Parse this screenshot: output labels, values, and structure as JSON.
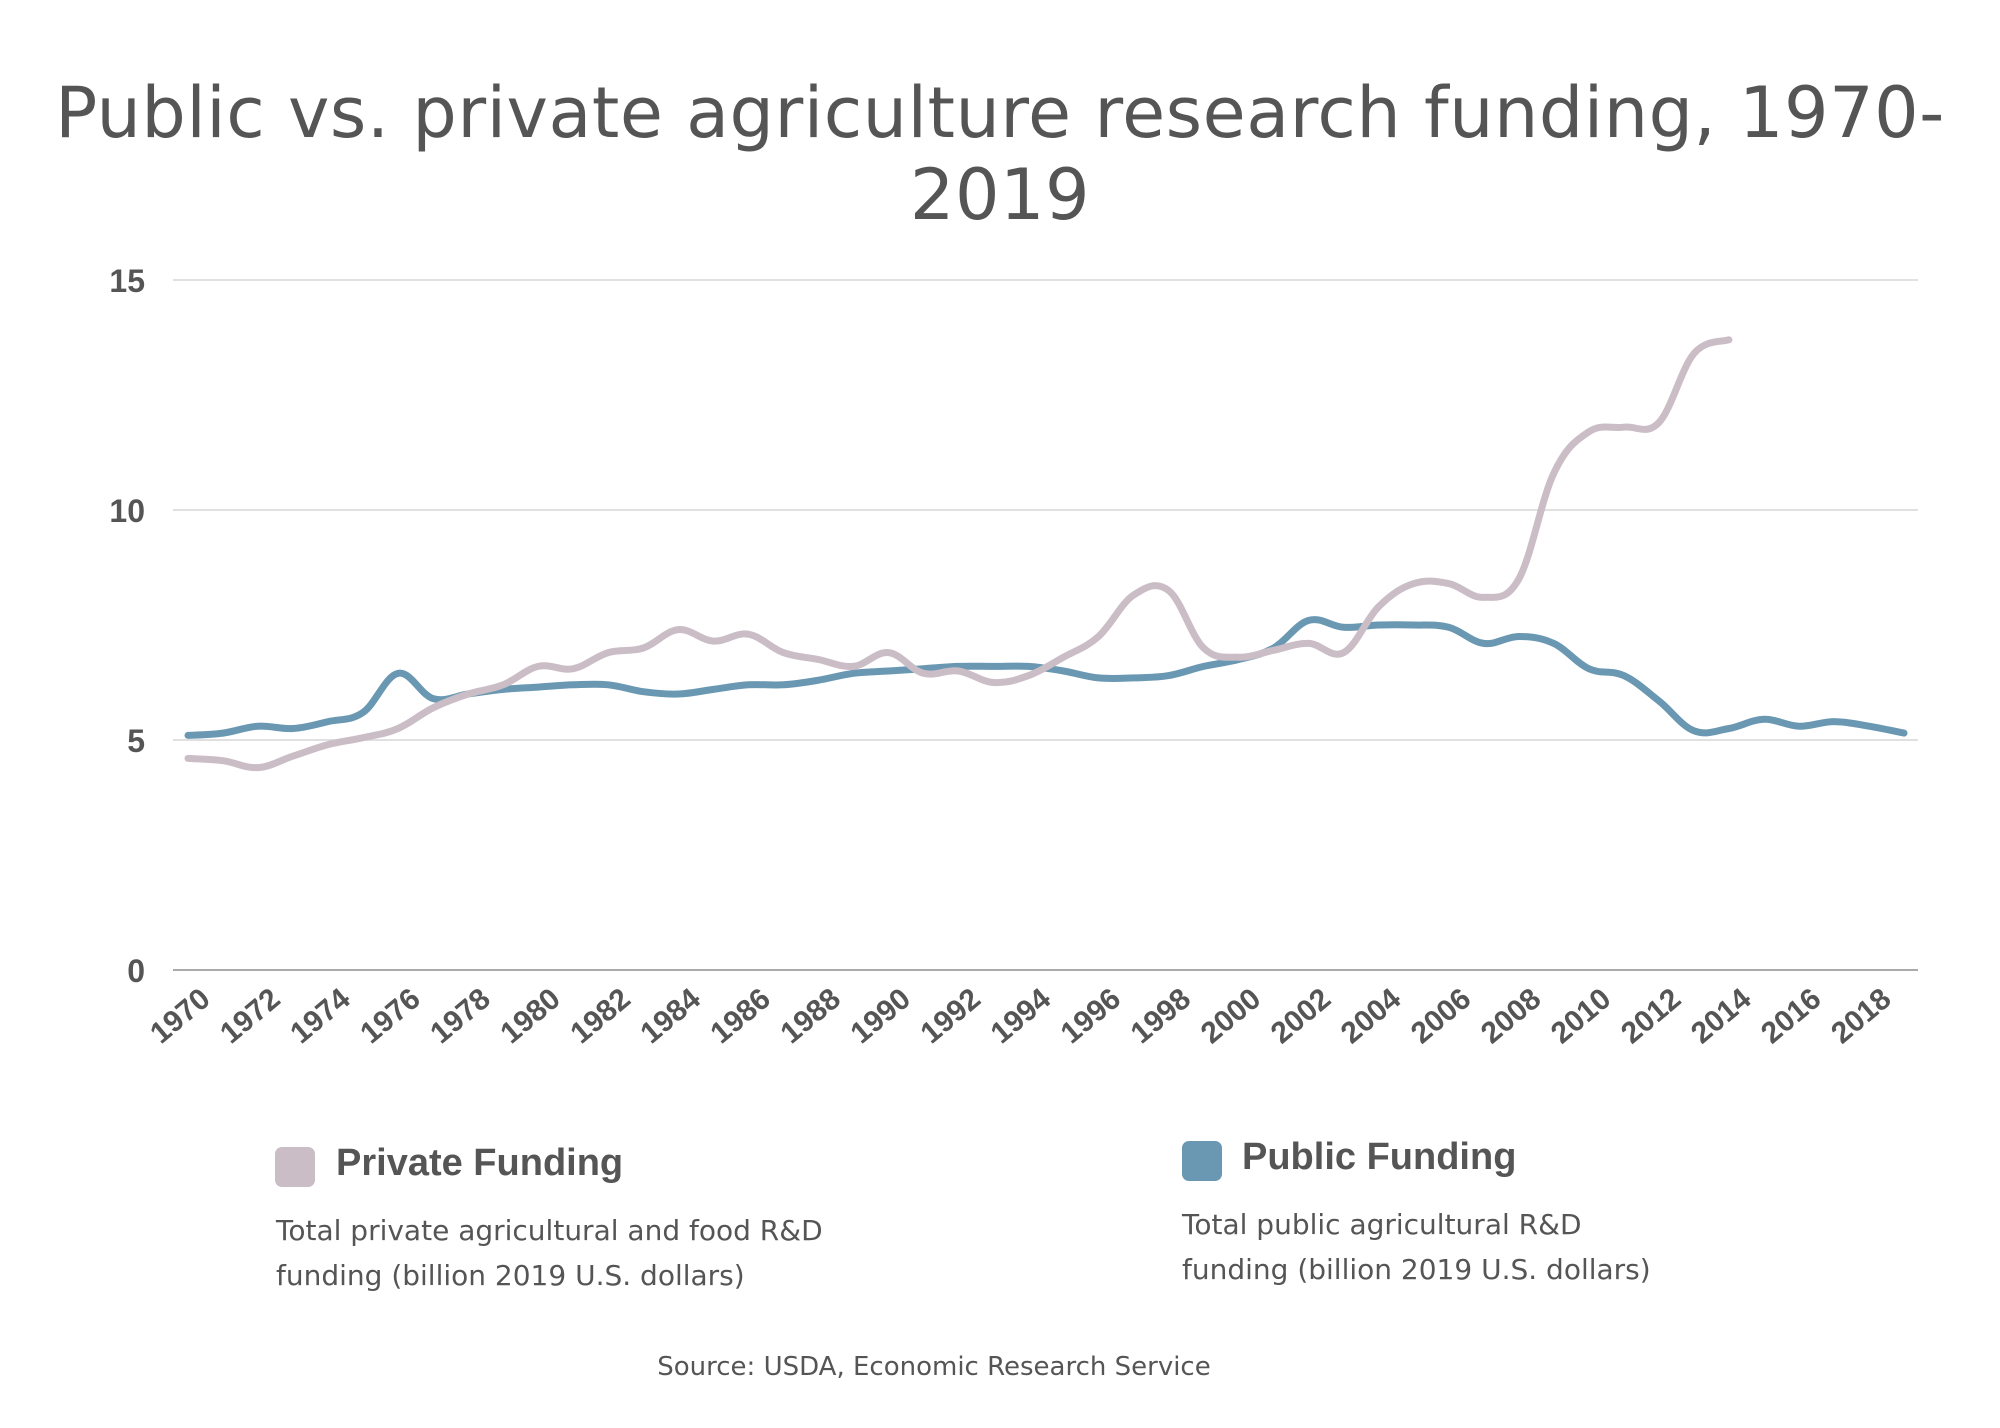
{
  "title": "Public vs. private agriculture research funding, 1970-2019",
  "legend": {
    "private": {
      "name": "Private Funding",
      "desc_line1": "Total private agricultural and food R&D",
      "desc_line2": "funding (billion 2019 U.S. dollars)",
      "color": "#cbbdc6"
    },
    "public": {
      "name": "Public Funding",
      "desc_line1": "Total public agricultural R&D",
      "desc_line2": "funding (billion 2019 U.S. dollars)",
      "color": "#6a98b3"
    }
  },
  "source": "Source:  USDA, Economic Research Service",
  "chart_data": {
    "type": "line",
    "title": "Public vs. private agriculture research funding, 1970-2019",
    "xlabel": "",
    "ylabel": "",
    "ylim": [
      0,
      15
    ],
    "yticks": [
      "0",
      "5",
      "10",
      "15"
    ],
    "xticks": [
      "1970",
      "1972",
      "1974",
      "1976",
      "1978",
      "1980",
      "1982",
      "1984",
      "1986",
      "1988",
      "1990",
      "1992",
      "1994",
      "1996",
      "1998",
      "2000",
      "2002",
      "2004",
      "2006",
      "2008",
      "2010",
      "2012",
      "2014",
      "2016",
      "2018"
    ],
    "grid": true,
    "legend_position": "bottom",
    "series": [
      {
        "name": "Private Funding",
        "color": "#cbbdc6",
        "x": [
          1970,
          1971,
          1972,
          1973,
          1974,
          1975,
          1976,
          1977,
          1978,
          1979,
          1980,
          1981,
          1982,
          1983,
          1984,
          1985,
          1986,
          1987,
          1988,
          1989,
          1990,
          1991,
          1992,
          1993,
          1994,
          1995,
          1996,
          1997,
          1998,
          1999,
          2000,
          2001,
          2002,
          2003,
          2004,
          2005,
          2006,
          2007,
          2008,
          2009,
          2010,
          2011,
          2012,
          2013,
          2014
        ],
        "values": [
          4.6,
          4.55,
          4.4,
          4.65,
          4.9,
          5.05,
          5.25,
          5.7,
          6.0,
          6.2,
          6.6,
          6.55,
          6.9,
          7.0,
          7.4,
          7.15,
          7.3,
          6.9,
          6.75,
          6.6,
          6.9,
          6.45,
          6.5,
          6.25,
          6.4,
          6.8,
          7.25,
          8.15,
          8.25,
          7.0,
          6.8,
          6.95,
          7.1,
          6.9,
          7.9,
          8.4,
          8.4,
          8.1,
          8.5,
          10.8,
          11.7,
          11.8,
          11.9,
          13.4,
          13.7
        ]
      },
      {
        "name": "Public Funding",
        "color": "#6a98b3",
        "x": [
          1970,
          1971,
          1972,
          1973,
          1974,
          1975,
          1976,
          1977,
          1978,
          1979,
          1980,
          1981,
          1982,
          1983,
          1984,
          1985,
          1986,
          1987,
          1988,
          1989,
          1990,
          1991,
          1992,
          1993,
          1994,
          1995,
          1996,
          1997,
          1998,
          1999,
          2000,
          2001,
          2002,
          2003,
          2004,
          2005,
          2006,
          2007,
          2008,
          2009,
          2010,
          2011,
          2012,
          2013,
          2014,
          2015,
          2016,
          2017,
          2018,
          2019
        ],
        "values": [
          5.1,
          5.15,
          5.3,
          5.25,
          5.4,
          5.6,
          6.45,
          5.9,
          6.0,
          6.1,
          6.15,
          6.2,
          6.2,
          6.05,
          6.0,
          6.1,
          6.2,
          6.2,
          6.3,
          6.45,
          6.5,
          6.55,
          6.6,
          6.6,
          6.6,
          6.5,
          6.35,
          6.35,
          6.4,
          6.6,
          6.75,
          7.0,
          7.6,
          7.45,
          7.5,
          7.5,
          7.45,
          7.1,
          7.25,
          7.1,
          6.55,
          6.4,
          5.85,
          5.2,
          5.25,
          5.45,
          5.3,
          5.4,
          5.3,
          5.15
        ]
      }
    ]
  }
}
